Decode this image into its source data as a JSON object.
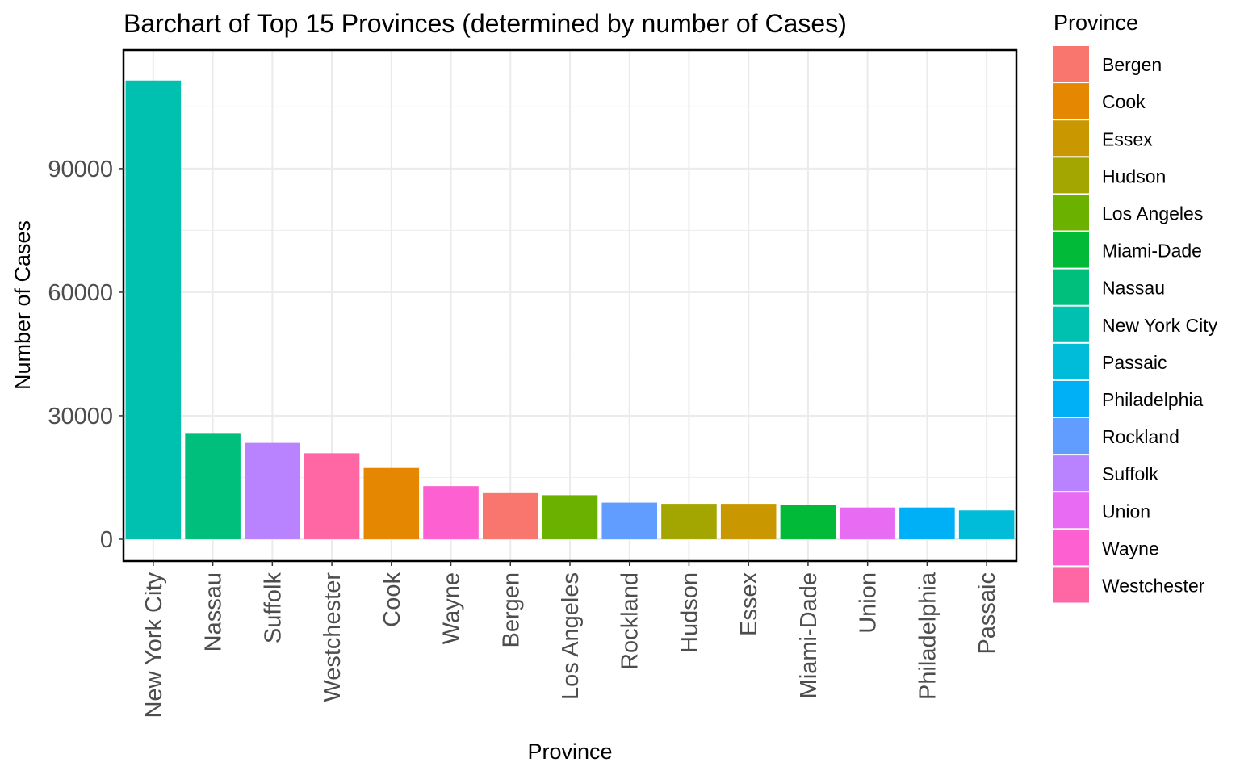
{
  "chart_data": {
    "type": "bar",
    "title": "Barchart of Top 15 Provinces (determined by number of Cases)",
    "xlabel": "Province",
    "ylabel": "Number of Cases",
    "ylim": [
      -5300,
      118800
    ],
    "yticks": [
      "0",
      "30000",
      "60000",
      "90000"
    ],
    "ytick_values": [
      0,
      30000,
      60000,
      90000
    ],
    "grid": true,
    "legend_title": "Province",
    "legend_position": "right",
    "categories": [
      "New York City",
      "Nassau",
      "Suffolk",
      "Westchester",
      "Cook",
      "Wayne",
      "Bergen",
      "Los Angeles",
      "Rockland",
      "Hudson",
      "Essex",
      "Miami-Dade",
      "Union",
      "Philadelphia",
      "Passaic"
    ],
    "values": [
      111400,
      25800,
      23400,
      20900,
      17300,
      12900,
      11200,
      10700,
      8900,
      8600,
      8600,
      8300,
      7700,
      7700,
      7000
    ],
    "legend": [
      {
        "label": "Bergen",
        "color": "#F8766D"
      },
      {
        "label": "Cook",
        "color": "#E58700"
      },
      {
        "label": "Essex",
        "color": "#C99800"
      },
      {
        "label": "Hudson",
        "color": "#A3A500"
      },
      {
        "label": "Los Angeles",
        "color": "#6BB100"
      },
      {
        "label": "Miami-Dade",
        "color": "#00BA38"
      },
      {
        "label": "Nassau",
        "color": "#00BF7D"
      },
      {
        "label": "New York City",
        "color": "#00C0AF"
      },
      {
        "label": "Passaic",
        "color": "#00BCD8"
      },
      {
        "label": "Philadelphia",
        "color": "#00B0F6"
      },
      {
        "label": "Rockland",
        "color": "#619CFF"
      },
      {
        "label": "Suffolk",
        "color": "#B983FF"
      },
      {
        "label": "Union",
        "color": "#E76BF3"
      },
      {
        "label": "Wayne",
        "color": "#FD61D1"
      },
      {
        "label": "Westchester",
        "color": "#FF67A4"
      }
    ]
  }
}
